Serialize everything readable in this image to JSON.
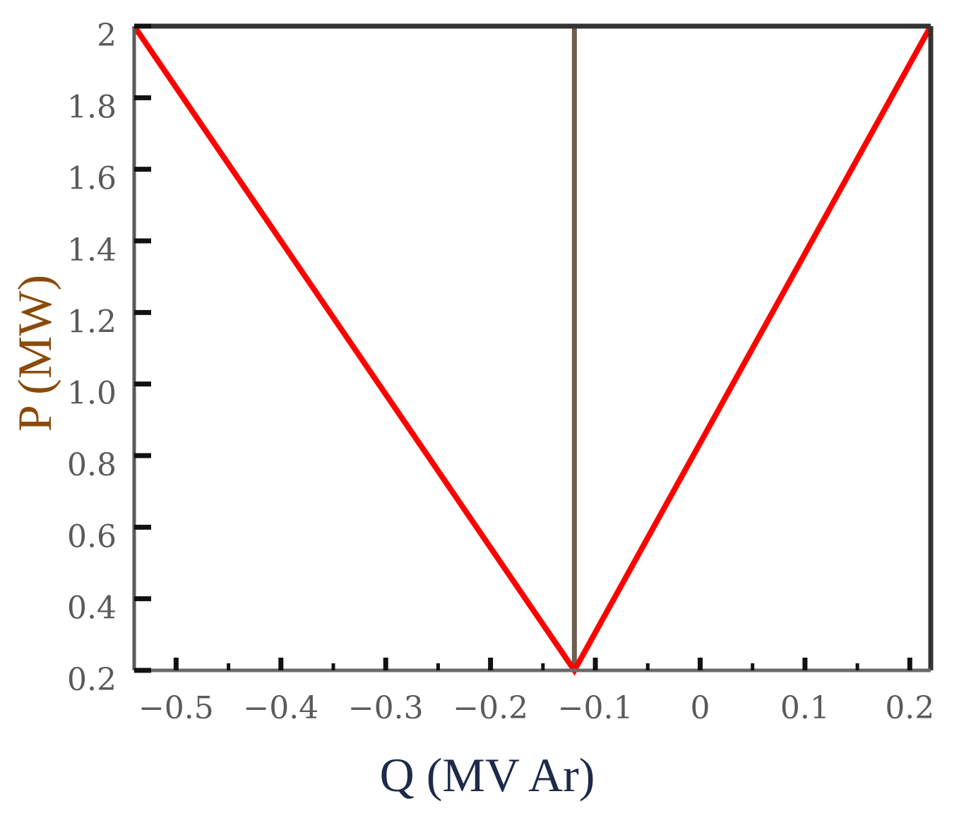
{
  "chart_data": {
    "type": "line",
    "xlabel": "Q (MV Ar)",
    "ylabel": "P (MW)",
    "xlim": [
      -0.54,
      0.22
    ],
    "ylim": [
      0.2,
      2.0
    ],
    "x_ticks": [
      -0.5,
      -0.4,
      -0.3,
      -0.2,
      -0.1,
      0,
      0.1,
      0.2
    ],
    "x_tick_labels": [
      "−0.5",
      "−0.4",
      "−0.3",
      "−0.2",
      "−0.1",
      "0",
      "0.1",
      "0.2"
    ],
    "x_minor_ticks": [
      -0.45,
      -0.35,
      -0.25,
      -0.15,
      -0.05,
      0.05,
      0.15
    ],
    "y_ticks": [
      0.2,
      0.4,
      0.6,
      0.8,
      1.0,
      1.2,
      1.4,
      1.6,
      1.8,
      2.0
    ],
    "y_tick_labels": [
      "0.2",
      "0.4",
      "0.6",
      "0.8",
      "1.0",
      "1.2",
      "1.4",
      "1.6",
      "1.8",
      "2"
    ],
    "vertical_line": {
      "x": -0.12,
      "color": "#6b6050"
    },
    "series": [
      {
        "color": "#ff0000",
        "points": [
          [
            -0.54,
            2.0
          ],
          [
            -0.12,
            0.2
          ],
          [
            0.22,
            2.0
          ]
        ]
      }
    ],
    "grid": false,
    "colors": {
      "frame": "#333333",
      "xlabel": "#1e2a4a",
      "ylabel": "#8a4a0a",
      "tick_label": "#5a5a5a"
    }
  }
}
